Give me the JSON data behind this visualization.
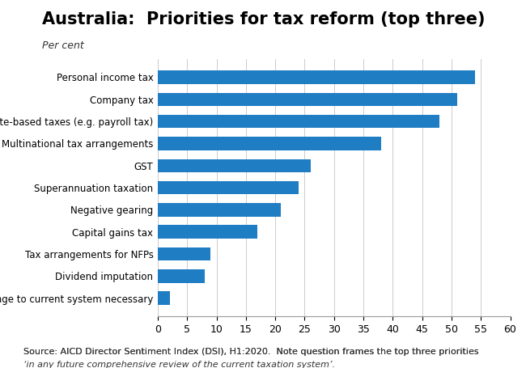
{
  "title": "Australia:  Priorities for tax reform (top three)",
  "subtitle": "Per cent",
  "categories": [
    "No change to current system necessary",
    "Dividend imputation",
    "Tax arrangements for NFPs",
    "Capital gains tax",
    "Negative gearing",
    "Superannuation taxation",
    "GST",
    "Multinational tax arrangements",
    "State-based taxes (e.g. payroll tax)",
    "Company tax",
    "Personal income tax"
  ],
  "values": [
    2,
    8,
    9,
    17,
    21,
    24,
    26,
    38,
    48,
    51,
    54
  ],
  "bar_color": "#1F7DC4",
  "xlim": [
    0,
    60
  ],
  "xticks": [
    0,
    5,
    10,
    15,
    20,
    25,
    30,
    35,
    40,
    45,
    50,
    55,
    60
  ],
  "source_normal": "Source: AICD Director Sentiment Index (DSI), H1:2020.  Note question frames the top three priorities ",
  "source_italic": "‘in any future comprehensive review of the current taxation system’.",
  "title_fontsize": 15,
  "subtitle_fontsize": 9,
  "label_fontsize": 8.5,
  "tick_fontsize": 9,
  "source_fontsize": 8,
  "bar_height": 0.6,
  "background_color": "#ffffff"
}
